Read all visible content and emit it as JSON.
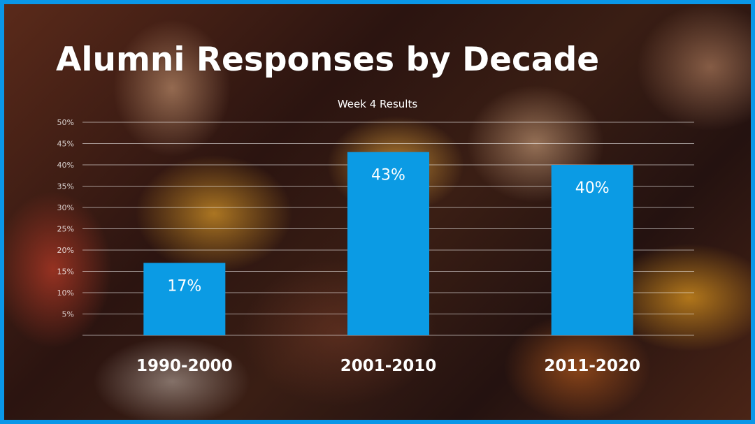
{
  "slide": {
    "title": "Alumni Responses by Decade",
    "frame_color": "#0a97e8"
  },
  "chart_data": {
    "type": "bar",
    "title": "Week 4 Results",
    "categories": [
      "1990-2000",
      "2001-2010",
      "2011-2020"
    ],
    "values": [
      17,
      43,
      40
    ],
    "data_labels": [
      "17%",
      "43%",
      "40%"
    ],
    "y_ticks": [
      "5%",
      "10%",
      "15%",
      "20%",
      "25%",
      "30%",
      "35%",
      "40%",
      "45%",
      "50%"
    ],
    "ylim": [
      0,
      50
    ],
    "grid": true,
    "legend": "none",
    "bar_color": "#0b9be4"
  }
}
